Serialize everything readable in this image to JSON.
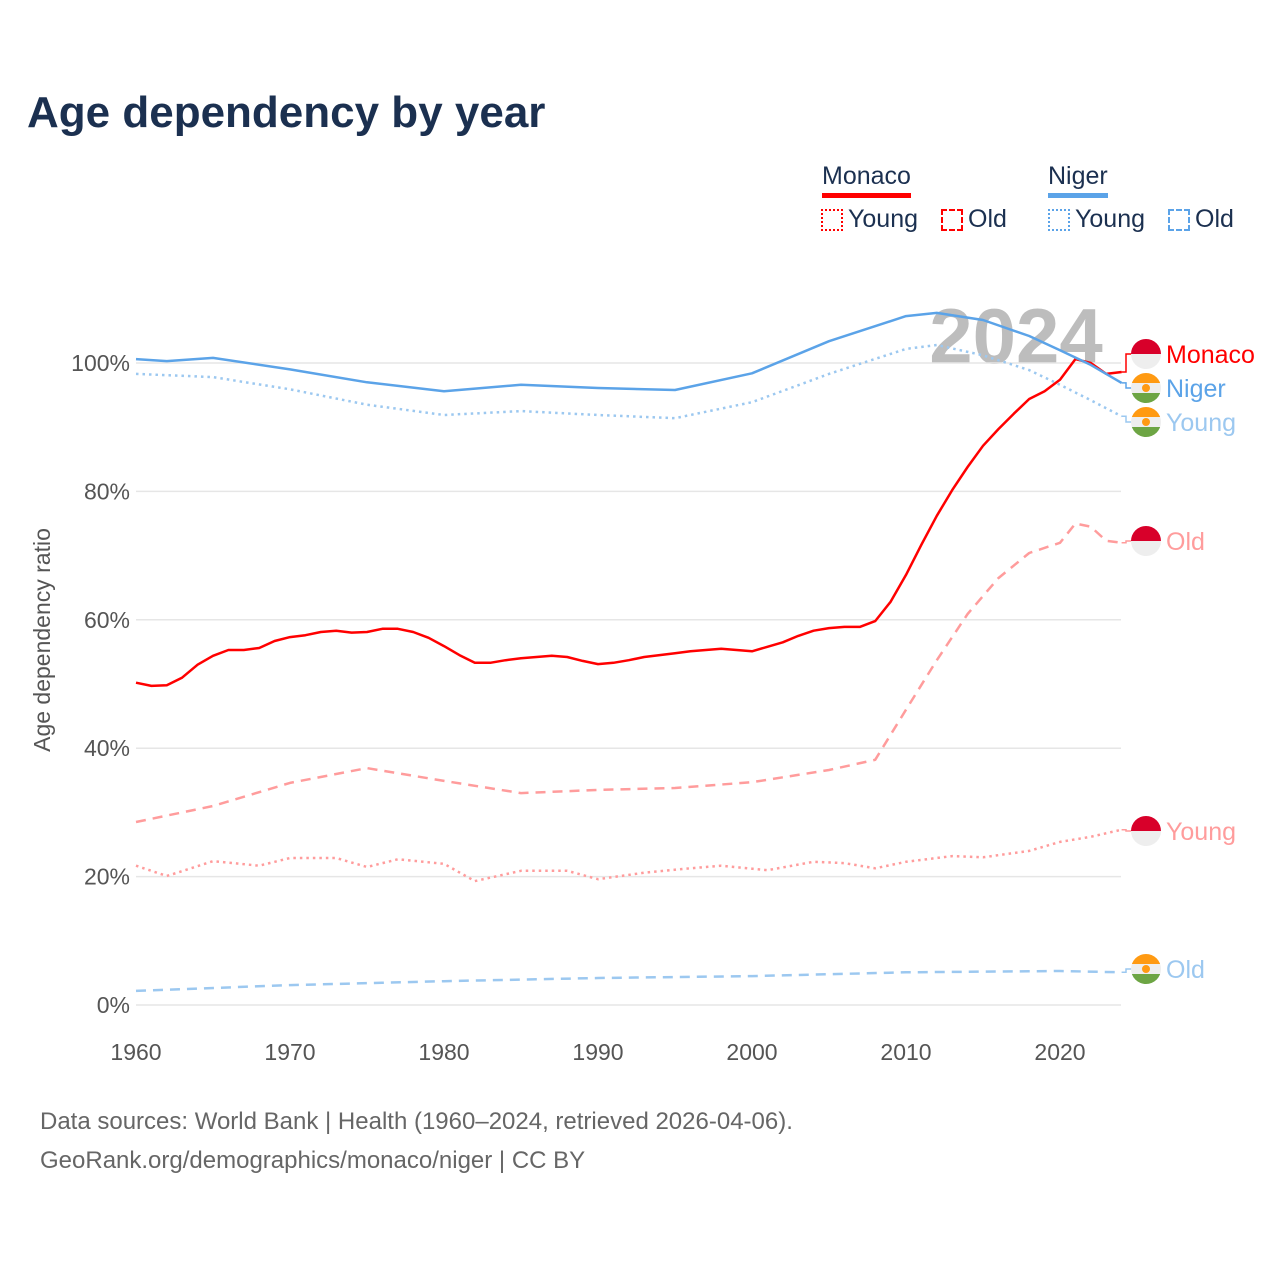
{
  "title": "Age dependency by year",
  "year_watermark": "2024",
  "legend": {
    "groups": [
      {
        "country": "Monaco",
        "items": [
          "Young",
          "Old"
        ]
      },
      {
        "country": "Niger",
        "items": [
          "Young",
          "Old"
        ]
      }
    ]
  },
  "colors": {
    "monaco": "#ff0000",
    "monaco_light": "#ff9c9c",
    "niger": "#5ba3e8",
    "niger_light": "#9cc8f0",
    "title": "#1b3050",
    "grid": "#e6e6e6"
  },
  "footer": {
    "line1": "Data sources: World Bank | Health (1960–2024, retrieved 2026-04-06).",
    "line2": "GeoRank.org/demographics/monaco/niger | CC BY"
  },
  "chart_data": {
    "type": "line",
    "title": "Age dependency by year",
    "xlabel": "",
    "ylabel": "Age dependency ratio",
    "xlim": [
      1960,
      2024
    ],
    "ylim": [
      0,
      110
    ],
    "x_ticks": [
      "1960",
      "1970",
      "1980",
      "1990",
      "2000",
      "2010",
      "2020"
    ],
    "y_ticks": [
      "0%",
      "20%",
      "40%",
      "60%",
      "80%",
      "100%"
    ],
    "grid": true,
    "series": [
      {
        "name": "Monaco",
        "end_label": "Monaco",
        "style": "solid",
        "color": "#ff0000",
        "x": [
          1960,
          1961,
          1962,
          1963,
          1964,
          1965,
          1966,
          1967,
          1968,
          1969,
          1970,
          1971,
          1972,
          1973,
          1974,
          1975,
          1976,
          1977,
          1978,
          1979,
          1980,
          1981,
          1982,
          1983,
          1984,
          1985,
          1986,
          1987,
          1988,
          1989,
          1990,
          1991,
          1992,
          1993,
          1994,
          1995,
          1996,
          1997,
          1998,
          1999,
          2000,
          2001,
          2002,
          2003,
          2004,
          2005,
          2006,
          2007,
          2008,
          2009,
          2010,
          2011,
          2012,
          2013,
          2014,
          2015,
          2016,
          2017,
          2018,
          2019,
          2020,
          2021,
          2022,
          2023,
          2024
        ],
        "y": [
          50.2,
          49.7,
          49.8,
          51,
          53,
          54.4,
          55.3,
          55.3,
          55.6,
          56.7,
          57.3,
          57.6,
          58.1,
          58.3,
          58,
          58.1,
          58.6,
          58.6,
          58.1,
          57.2,
          55.9,
          54.5,
          53.3,
          53.3,
          53.7,
          54,
          54.2,
          54.4,
          54.2,
          53.6,
          53.1,
          53.3,
          53.7,
          54.2,
          54.5,
          54.8,
          55.1,
          55.3,
          55.5,
          55.3,
          55.1,
          55.8,
          56.5,
          57.5,
          58.3,
          58.7,
          58.9,
          58.9,
          59.8,
          62.8,
          67,
          71.7,
          76.2,
          80.2,
          83.8,
          87.1,
          89.7,
          92.1,
          94.4,
          95.6,
          97.4,
          100.6,
          100,
          98.3,
          98.6
        ]
      },
      {
        "name": "Monaco Old",
        "end_label": "Old",
        "style": "dashed",
        "color": "#ff9c9c",
        "x": [
          1960,
          1965,
          1970,
          1975,
          1980,
          1985,
          1990,
          1995,
          2000,
          2005,
          2008,
          2010,
          2012,
          2014,
          2016,
          2018,
          2020,
          2021,
          2022,
          2023,
          2024
        ],
        "y": [
          28.5,
          31,
          34.6,
          36.9,
          34.9,
          33,
          33.5,
          33.8,
          34.7,
          36.6,
          38.2,
          46,
          53.7,
          60.9,
          66.5,
          70.4,
          72,
          75,
          74.5,
          72.3,
          72
        ]
      },
      {
        "name": "Monaco Young",
        "end_label": "Young",
        "style": "dotted",
        "color": "#ff9c9c",
        "x": [
          1960,
          1962,
          1965,
          1968,
          1970,
          1973,
          1975,
          1977,
          1980,
          1982,
          1985,
          1988,
          1990,
          1993,
          1996,
          1998,
          2001,
          2004,
          2006,
          2008,
          2010,
          2013,
          2015,
          2018,
          2020,
          2022,
          2024
        ],
        "y": [
          21.7,
          20.1,
          22.4,
          21.7,
          22.9,
          22.9,
          21.5,
          22.7,
          22,
          19.3,
          20.9,
          20.9,
          19.6,
          20.6,
          21.3,
          21.7,
          21,
          22.3,
          22.1,
          21.3,
          22.3,
          23.2,
          23,
          24,
          25.4,
          26.2,
          27.3
        ]
      },
      {
        "name": "Niger",
        "end_label": "Niger",
        "style": "solid",
        "color": "#5ba3e8",
        "x": [
          1960,
          1962,
          1965,
          1970,
          1975,
          1980,
          1985,
          1990,
          1995,
          2000,
          2005,
          2010,
          2012,
          2015,
          2018,
          2020,
          2022,
          2024
        ],
        "y": [
          100.6,
          100.3,
          100.8,
          99,
          97,
          95.6,
          96.6,
          96.1,
          95.8,
          98.4,
          103.4,
          107.3,
          107.8,
          106.7,
          104.2,
          102,
          99.7,
          96.9
        ]
      },
      {
        "name": "Niger Young",
        "end_label": "Young",
        "style": "dotted",
        "color": "#9cc8f0",
        "x": [
          1960,
          1965,
          1970,
          1975,
          1980,
          1985,
          1990,
          1995,
          2000,
          2005,
          2010,
          2012,
          2015,
          2018,
          2020,
          2022,
          2024
        ],
        "y": [
          98.3,
          97.8,
          95.9,
          93.5,
          91.9,
          92.5,
          91.9,
          91.4,
          93.9,
          98.3,
          102.2,
          102.8,
          101.2,
          98.9,
          96.6,
          94.2,
          91.7
        ]
      },
      {
        "name": "Niger Old",
        "end_label": "Old",
        "style": "dashed",
        "color": "#9cc8f0",
        "x": [
          1960,
          1970,
          1980,
          1990,
          2000,
          2010,
          2020,
          2024
        ],
        "y": [
          2.2,
          3.1,
          3.7,
          4.2,
          4.5,
          5.1,
          5.3,
          5.1
        ]
      }
    ]
  }
}
